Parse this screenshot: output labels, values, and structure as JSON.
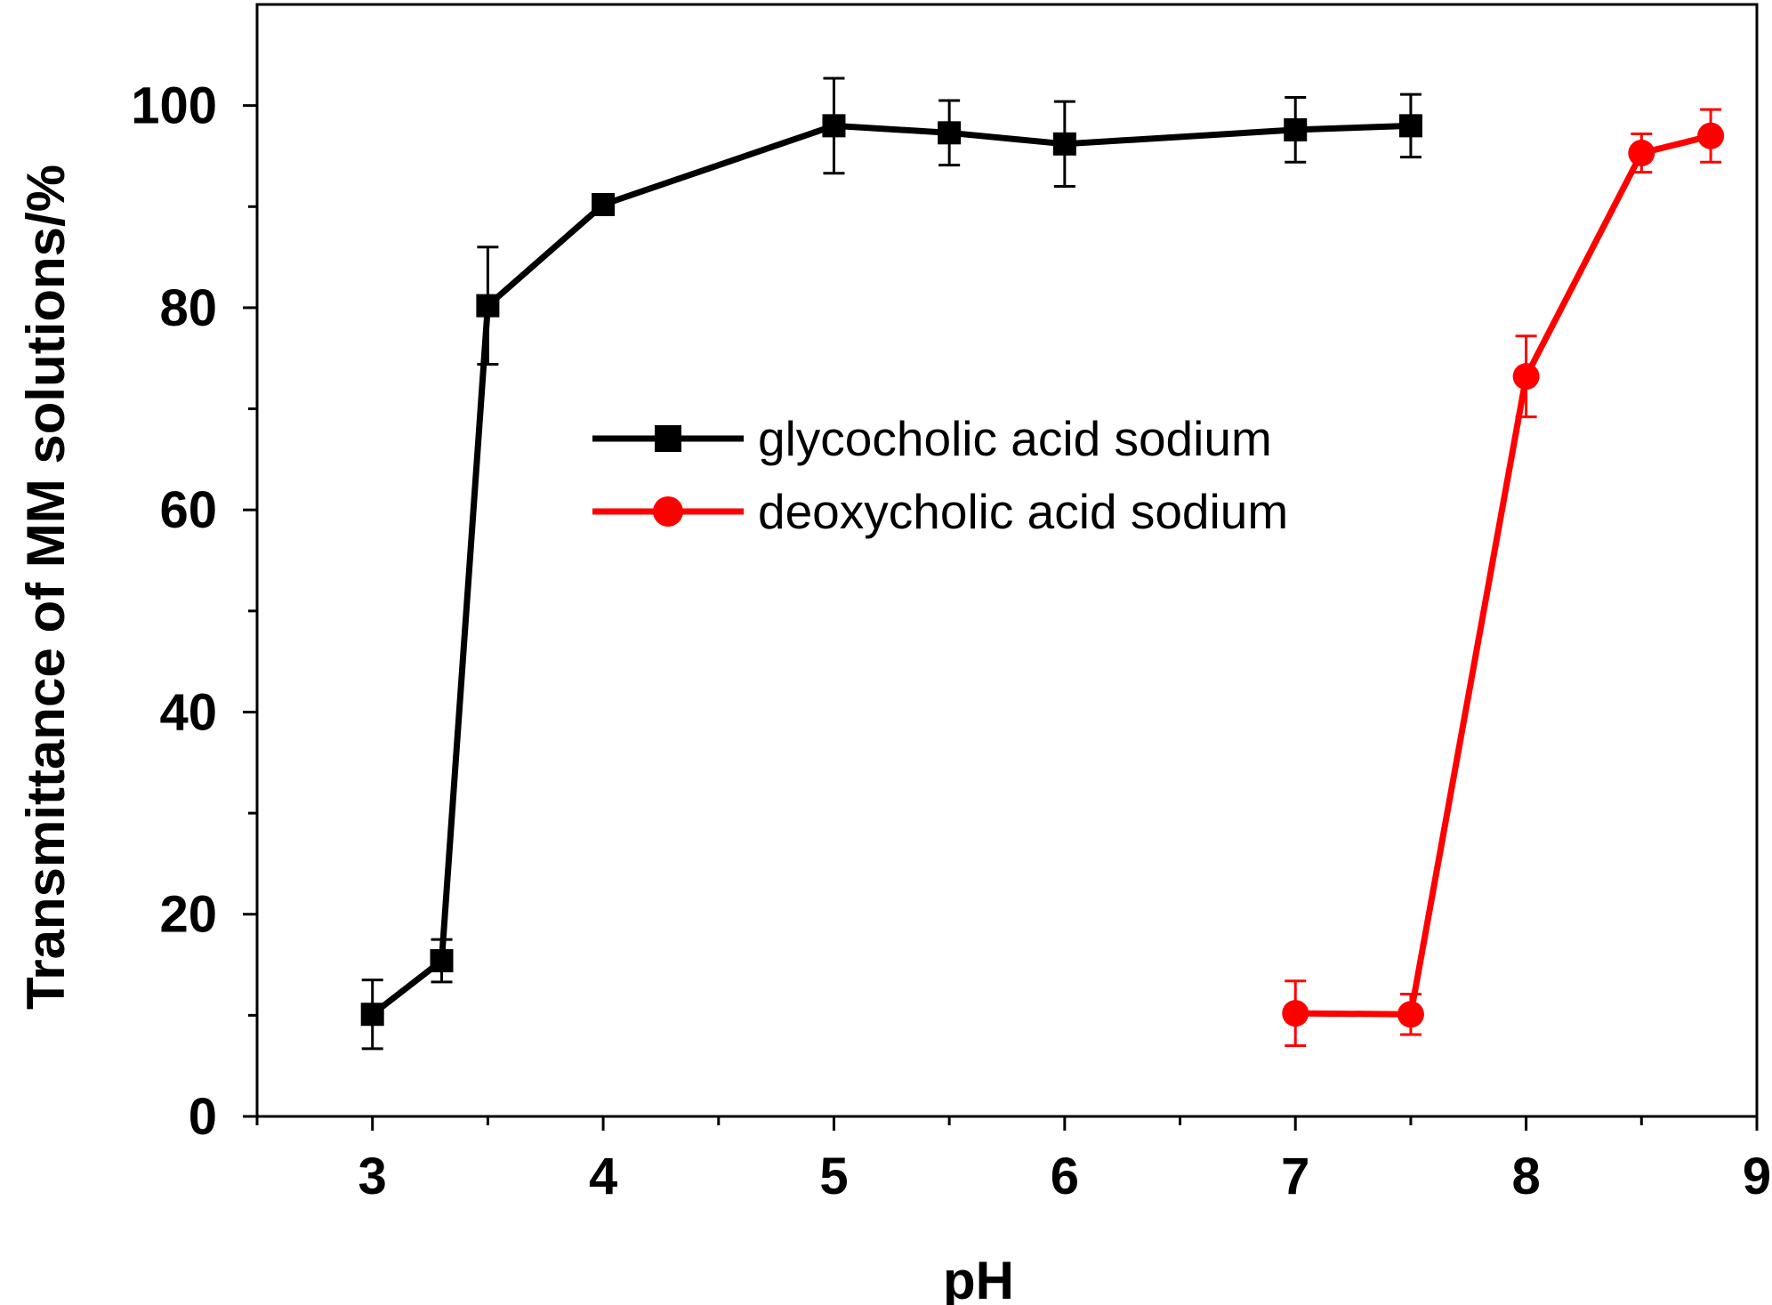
{
  "chart_data": {
    "type": "line",
    "title": "",
    "xlabel": "pH",
    "ylabel": "Transmittance of MM solutions/%",
    "xlim": [
      2.5,
      9
    ],
    "ylim": [
      0,
      110
    ],
    "x_ticks": [
      3,
      4,
      5,
      6,
      7,
      8,
      9
    ],
    "x_tick_labels": [
      "3",
      "4",
      "5",
      "6",
      "7",
      "8",
      "9"
    ],
    "x_minor_ticks": [
      2.5,
      3.5,
      4.5,
      5.5,
      6.5,
      7.5,
      8.5
    ],
    "y_ticks": [
      0,
      20,
      40,
      60,
      80,
      100
    ],
    "y_tick_labels": [
      "0",
      "20",
      "40",
      "60",
      "80",
      "100"
    ],
    "y_minor_ticks": [
      10,
      30,
      50,
      70,
      90
    ],
    "grid": false,
    "legend_position": "center",
    "series": [
      {
        "name": "glycocholic acid sodium",
        "color": "#000000",
        "marker": "square",
        "x": [
          3,
          3.3,
          3.5,
          4,
          5,
          5.5,
          6,
          7,
          7.5
        ],
        "y": [
          10.1,
          15.4,
          80.2,
          90.2,
          98.0,
          97.3,
          96.2,
          97.6,
          98.0
        ],
        "error": [
          3.4,
          2.1,
          5.8,
          1.0,
          4.7,
          3.2,
          4.2,
          3.2,
          3.1
        ]
      },
      {
        "name": "deoxycholic acid sodium",
        "color": "#ff0000",
        "marker": "circle",
        "x": [
          7,
          7.5,
          8,
          8.5,
          8.8
        ],
        "y": [
          10.2,
          10.1,
          73.2,
          95.3,
          97.0
        ],
        "error": [
          3.2,
          2.0,
          4.0,
          1.9,
          2.6
        ]
      }
    ]
  }
}
